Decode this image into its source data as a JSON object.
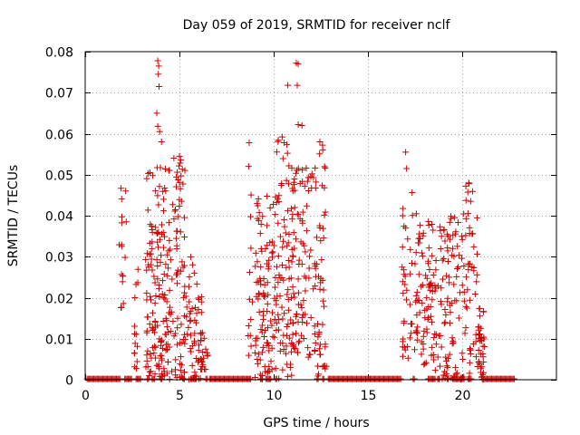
{
  "chart_data": {
    "type": "scatter",
    "title": "Day 059 of 2019, SRMTID for receiver nclf",
    "xlabel": "GPS time / hours",
    "ylabel": "SRMTID / TECUs",
    "xlim": [
      0,
      25
    ],
    "ylim": [
      0,
      0.08
    ],
    "xticks": [
      0,
      5,
      10,
      15,
      20
    ],
    "xtick_labels": [
      "0",
      "5",
      "10",
      "15",
      "20"
    ],
    "yticks": [
      0,
      0.01,
      0.02,
      0.03,
      0.04,
      0.05,
      0.06,
      0.07,
      0.08
    ],
    "ytick_labels": [
      "0",
      "0.01",
      "0.02",
      "0.03",
      "0.04",
      "0.05",
      "0.06",
      "0.07",
      "0.08"
    ],
    "grid": "dotted",
    "marker": "+",
    "marker_color": "#d00000",
    "zero_bands": [
      [
        0.1,
        1.9
      ],
      [
        2.1,
        2.5
      ],
      [
        2.7,
        3.0
      ],
      [
        3.3,
        3.4
      ],
      [
        3.55,
        3.7
      ],
      [
        4.0,
        4.1
      ],
      [
        5.2,
        5.3
      ],
      [
        5.6,
        5.9
      ],
      [
        6.4,
        6.5
      ],
      [
        6.6,
        8.8
      ],
      [
        9.3,
        9.4
      ],
      [
        9.6,
        9.9
      ],
      [
        10.1,
        10.2
      ],
      [
        12.3,
        12.4
      ],
      [
        12.6,
        12.7
      ],
      [
        12.9,
        16.8
      ],
      [
        17.4,
        17.5
      ],
      [
        18.2,
        18.6
      ],
      [
        18.7,
        18.8
      ],
      [
        19.2,
        19.3
      ],
      [
        19.5,
        20.1
      ],
      [
        20.3,
        20.5
      ],
      [
        21.2,
        22.8
      ]
    ],
    "clusters": [
      {
        "x": [
          1.8,
          2.2
        ],
        "y": [
          0.017,
          0.047
        ],
        "n": 16
      },
      {
        "x": [
          2.6,
          2.8
        ],
        "y": [
          0.002,
          0.03
        ],
        "n": 14
      },
      {
        "x": [
          3.2,
          4.4
        ],
        "y": [
          0.0,
          0.052
        ],
        "n": 140
      },
      {
        "x": [
          4.4,
          5.3
        ],
        "y": [
          0.0,
          0.055
        ],
        "n": 85
      },
      {
        "x": [
          5.3,
          6.2
        ],
        "y": [
          0.0,
          0.03
        ],
        "n": 45
      },
      {
        "x": [
          6.0,
          6.5
        ],
        "y": [
          0.0,
          0.012
        ],
        "n": 25
      },
      {
        "x": [
          8.6,
          8.9
        ],
        "y": [
          0.0,
          0.058
        ],
        "n": 14
      },
      {
        "x": [
          9.0,
          10.1
        ],
        "y": [
          0.0,
          0.045
        ],
        "n": 100
      },
      {
        "x": [
          10.1,
          11.0
        ],
        "y": [
          0.0,
          0.06
        ],
        "n": 85
      },
      {
        "x": [
          11.0,
          12.2
        ],
        "y": [
          0.005,
          0.052
        ],
        "n": 95
      },
      {
        "x": [
          12.2,
          12.8
        ],
        "y": [
          0.0,
          0.058
        ],
        "n": 50
      },
      {
        "x": [
          16.8,
          17.6
        ],
        "y": [
          0.005,
          0.046
        ],
        "n": 45
      },
      {
        "x": [
          17.6,
          18.4
        ],
        "y": [
          0.003,
          0.04
        ],
        "n": 60
      },
      {
        "x": [
          18.4,
          19.1
        ],
        "y": [
          0.0,
          0.038
        ],
        "n": 45
      },
      {
        "x": [
          19.1,
          20.0
        ],
        "y": [
          0.0,
          0.04
        ],
        "n": 60
      },
      {
        "x": [
          20.0,
          20.8
        ],
        "y": [
          0.0,
          0.048
        ],
        "n": 50
      },
      {
        "x": [
          20.8,
          21.2
        ],
        "y": [
          0.0,
          0.018
        ],
        "n": 40
      }
    ],
    "notable_points": [
      {
        "x": 3.85,
        "y": 0.0778
      },
      {
        "x": 3.9,
        "y": 0.0765
      },
      {
        "x": 3.88,
        "y": 0.0745
      },
      {
        "x": 3.92,
        "y": 0.0715
      },
      {
        "x": 3.8,
        "y": 0.065
      },
      {
        "x": 3.85,
        "y": 0.0618
      },
      {
        "x": 3.95,
        "y": 0.0605
      },
      {
        "x": 4.05,
        "y": 0.058
      },
      {
        "x": 5.0,
        "y": 0.0545
      },
      {
        "x": 8.7,
        "y": 0.0578
      },
      {
        "x": 10.45,
        "y": 0.0592
      },
      {
        "x": 10.55,
        "y": 0.0578
      },
      {
        "x": 10.75,
        "y": 0.0718
      },
      {
        "x": 11.2,
        "y": 0.0772
      },
      {
        "x": 11.3,
        "y": 0.077
      },
      {
        "x": 11.25,
        "y": 0.0718
      },
      {
        "x": 11.3,
        "y": 0.0622
      },
      {
        "x": 11.5,
        "y": 0.062
      },
      {
        "x": 12.45,
        "y": 0.058
      },
      {
        "x": 17.0,
        "y": 0.0555
      },
      {
        "x": 17.05,
        "y": 0.0515
      },
      {
        "x": 20.35,
        "y": 0.048
      },
      {
        "x": 20.45,
        "y": 0.0435
      }
    ]
  }
}
